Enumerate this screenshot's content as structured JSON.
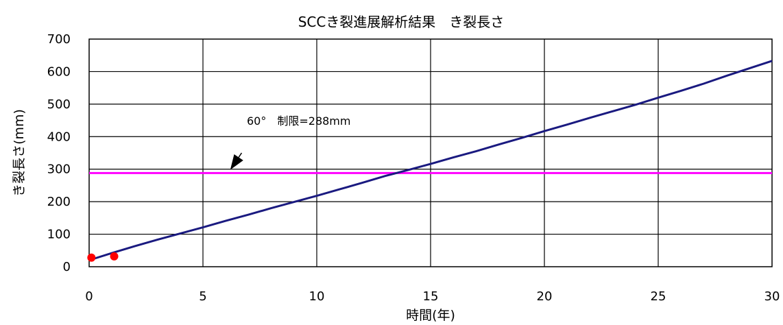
{
  "chart_data": {
    "type": "line",
    "title": "SCCき裂進展解析結果　き裂長さ",
    "xlabel": "時間(年)",
    "ylabel": "き裂長さ(mm)",
    "xlim": [
      0,
      30
    ],
    "ylim": [
      0,
      700
    ],
    "x_ticks": [
      0,
      5,
      10,
      15,
      20,
      25,
      30
    ],
    "y_ticks": [
      0,
      100,
      200,
      300,
      400,
      500,
      600,
      700
    ],
    "x_tick_labels": [
      "0",
      "5",
      "10",
      "15",
      "20",
      "25",
      "30"
    ],
    "y_tick_labels": [
      "0",
      "100",
      "200",
      "300",
      "400",
      "500",
      "600",
      "700"
    ],
    "grid": true,
    "series": [
      {
        "color": "#1a1a80",
        "x": [
          0,
          1,
          2,
          3,
          4,
          5,
          6,
          7,
          8,
          9,
          10,
          11,
          12,
          13,
          14,
          15,
          16,
          17,
          18,
          19,
          20,
          21,
          22,
          23,
          24,
          25,
          26,
          27,
          28,
          29,
          30
        ],
        "y": [
          20,
          42,
          63,
          83,
          102,
          121,
          141,
          160,
          180,
          199,
          218,
          238,
          258,
          279,
          297,
          316,
          336,
          355,
          376,
          396,
          417,
          437,
          458,
          478,
          498,
          520,
          541,
          563,
          587,
          610,
          633
        ]
      }
    ],
    "points": [
      {
        "color": "#ff0000",
        "x": 0.1,
        "y": 28
      },
      {
        "color": "#ff0000",
        "x": 1.1,
        "y": 32
      }
    ],
    "hlines": [
      {
        "y": 288,
        "color": "#ff00ff"
      }
    ],
    "annotations": [
      {
        "text": "60°　制限=288mm",
        "arrow_from": [
          6.7,
          350
        ],
        "arrow_to": [
          6.2,
          298
        ]
      }
    ]
  }
}
